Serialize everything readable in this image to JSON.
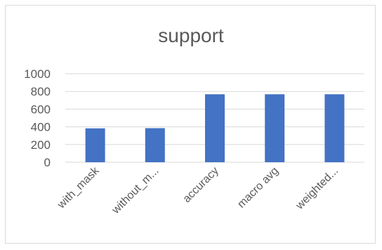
{
  "chart_data": {
    "type": "bar",
    "title": "support",
    "categories": [
      "with_mask",
      "without_m...",
      "accuracy",
      "macro avg",
      "weighted..."
    ],
    "values": [
      383,
      385,
      768,
      768,
      768
    ],
    "ylim": [
      0,
      1000
    ],
    "yticks": [
      0,
      200,
      400,
      600,
      800,
      1000
    ],
    "grid": true,
    "legend": "none",
    "colors": {
      "bar": "#4472c4",
      "grid": "#d9d9d9",
      "text": "#595959"
    }
  }
}
